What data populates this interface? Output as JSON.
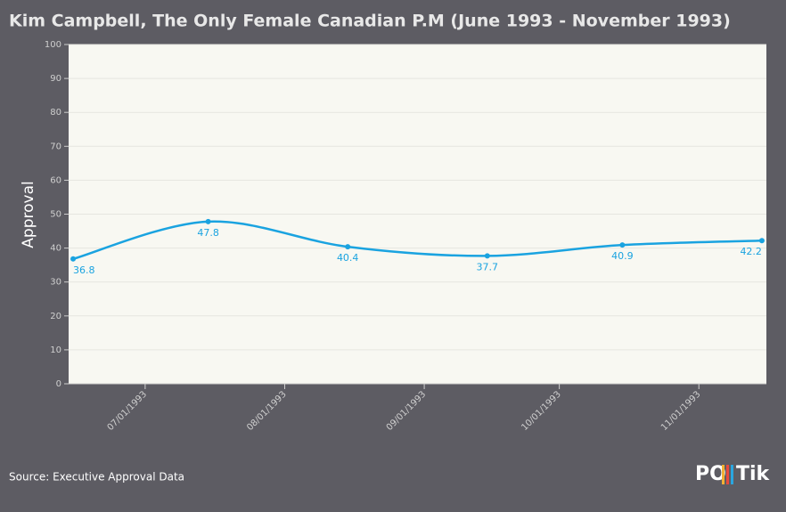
{
  "chart_data": {
    "type": "line",
    "title": "Kim Campbell, The Only Female Canadian P.M (June 1993 - November 1993)",
    "y_label": "Approval",
    "source": "Source: Executive Approval Data",
    "logo": [
      "PO",
      "Tik"
    ],
    "x": [
      "1993-06-15",
      "1993-07-15",
      "1993-08-15",
      "1993-09-15",
      "1993-10-15",
      "1993-11-15"
    ],
    "series": [
      {
        "name": "Approval",
        "color": "#1aa3e0",
        "values": [
          36.8,
          47.8,
          40.4,
          37.7,
          40.9,
          42.2
        ]
      }
    ],
    "xlim": [
      "1993-06-14",
      "1993-11-16"
    ],
    "xticks": [
      {
        "value": "1993-07-01",
        "label": "07/01/1993"
      },
      {
        "value": "1993-08-01",
        "label": "08/01/1993"
      },
      {
        "value": "1993-09-01",
        "label": "09/01/1993"
      },
      {
        "value": "1993-10-01",
        "label": "10/01/1993"
      },
      {
        "value": "1993-11-01",
        "label": "11/01/1993"
      }
    ],
    "ylim": [
      0,
      100
    ],
    "yticks": [
      0,
      10,
      20,
      30,
      40,
      50,
      60,
      70,
      80,
      90,
      100
    ],
    "grid": true
  }
}
